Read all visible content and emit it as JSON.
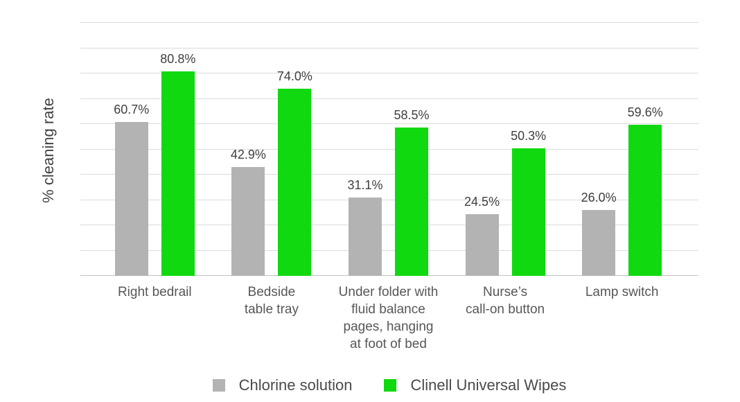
{
  "chart_data": {
    "type": "bar",
    "title": "",
    "xlabel": "",
    "ylabel": "% cleaning rate",
    "ylim": [
      0,
      100
    ],
    "gridline_step": 10,
    "grid": true,
    "legend_position": "bottom",
    "categories": [
      "Right bedrail",
      "Bedside\ntable tray",
      "Under folder with\nfluid balance\npages, hanging\nat foot of bed",
      "Nurse’s\ncall-on button",
      "Lamp switch"
    ],
    "series": [
      {
        "name": "Chlorine solution",
        "color": "#b3b3b3",
        "values": [
          60.7,
          42.9,
          31.1,
          24.5,
          26.0
        ],
        "labels": [
          "60.7%",
          "42.9%",
          "31.1%",
          "24.5%",
          "26.0%"
        ]
      },
      {
        "name": "Clinell Universal Wipes",
        "color": "#10d910",
        "values": [
          80.8,
          74.0,
          58.5,
          50.3,
          59.6
        ],
        "labels": [
          "80.8%",
          "74.0%",
          "58.5%",
          "50.3%",
          "59.6%"
        ]
      }
    ],
    "colors": {
      "gridline": "#dbdbdb",
      "baseline": "#c2c2c2",
      "value_label": "#3e3e3e",
      "category_label": "#575757",
      "legend_label": "#4a4a4a",
      "axis_title": "#414141",
      "background": "#ffffff"
    }
  }
}
